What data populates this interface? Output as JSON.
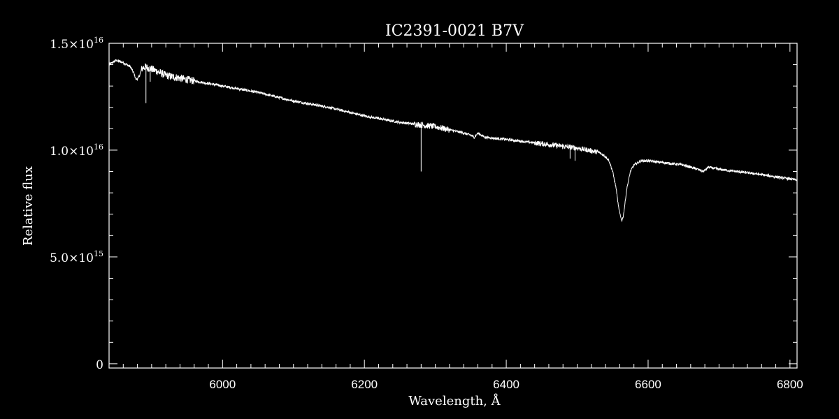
{
  "chart_data": {
    "type": "line",
    "title": "IC2391-0021   B7V",
    "xlabel": "Wavelength, Å",
    "ylabel": "Relative flux",
    "xlim": [
      5840,
      6810
    ],
    "ylim": [
      -200000000000000.0,
      1.5e+16
    ],
    "xticks": [
      {
        "value": 6000,
        "label": "6000"
      },
      {
        "value": 6200,
        "label": "6200"
      },
      {
        "value": 6400,
        "label": "6400"
      },
      {
        "value": 6600,
        "label": "6600"
      },
      {
        "value": 6800,
        "label": "6800"
      }
    ],
    "yticks": [
      {
        "value": 0,
        "mantissa": "0",
        "exponent": ""
      },
      {
        "value": 5000000000000000.0,
        "mantissa": "5.0×10",
        "exponent": "15"
      },
      {
        "value": 1e+16,
        "mantissa": "1.0×10",
        "exponent": "16"
      },
      {
        "value": 1.5e+16,
        "mantissa": "1.5×10",
        "exponent": "16"
      }
    ],
    "x_minor_step": 20,
    "y_minor_step": 1000000000000000.0,
    "grid": false,
    "colors": {
      "background": "#000000",
      "foreground": "#ffffff",
      "line": "#ffffff"
    },
    "series": [
      {
        "x": [
          5840,
          5850,
          5860,
          5870,
          5875,
          5878,
          5882,
          5886,
          5890,
          5900,
          5920,
          5950,
          6000,
          6050,
          6100,
          6150,
          6200,
          6250,
          6300,
          6340,
          6350,
          6355,
          6360,
          6365,
          6370,
          6400,
          6450,
          6500,
          6530,
          6540,
          6545,
          6550,
          6555,
          6558,
          6561,
          6563,
          6565,
          6567,
          6570,
          6575,
          6580,
          6590,
          6600,
          6650,
          6670,
          6678,
          6685,
          6700,
          6750,
          6800,
          6810
        ],
        "y": [
          1.4e+16,
          1.42e+16,
          1.41e+16,
          1.39e+16,
          1.36e+16,
          1.33e+16,
          1.34e+16,
          1.38e+16,
          1.39e+16,
          1.38e+16,
          1.35e+16,
          1.33e+16,
          1.3e+16,
          1.27e+16,
          1.23e+16,
          1.2e+16,
          1.16e+16,
          1.13e+16,
          1.11e+16,
          1.08e+16,
          1.07e+16,
          1.06e+16,
          1.08e+16,
          1.07e+16,
          1.06e+16,
          1.05e+16,
          1.03e+16,
          1.01e+16,
          9900000000000000.0,
          9700000000000000.0,
          9500000000000000.0,
          9000000000000000.0,
          8200000000000000.0,
          7400000000000000.0,
          6900000000000000.0,
          6700000000000000.0,
          6900000000000000.0,
          7400000000000000.0,
          8200000000000000.0,
          9000000000000000.0,
          9300000000000000.0,
          9500000000000000.0,
          9500000000000000.0,
          9300000000000000.0,
          9100000000000000.0,
          9000000000000000.0,
          9200000000000000.0,
          9100000000000000.0,
          8900000000000000.0,
          8650000000000000.0,
          8600000000000000.0
        ]
      }
    ],
    "spikes": [
      {
        "x": 5892,
        "y_low": 1.22e+16
      },
      {
        "x": 5898,
        "y_low": 1.32e+16
      },
      {
        "x": 6280,
        "y_low": 9000000000000000.0
      },
      {
        "x": 6490,
        "y_low": 9600000000000000.0
      },
      {
        "x": 6497,
        "y_low": 9500000000000000.0
      }
    ]
  }
}
